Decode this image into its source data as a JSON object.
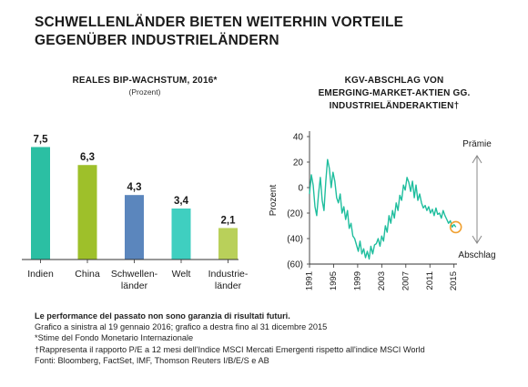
{
  "title_line1": "SCHWELLENLÄNDER BIETEN WEITERHIN VORTEILE",
  "title_line2": "GEGENÜBER INDUSTRIELÄNDERN",
  "chart_data": [
    {
      "type": "bar",
      "title": "REALES BIP-WACHSTUM, 2016*",
      "subtitle": "(Prozent)",
      "categories": [
        "Indien",
        "China",
        "Schwellenländer",
        "Welt",
        "Industrieländer"
      ],
      "category_labels": [
        [
          "Indien"
        ],
        [
          "China"
        ],
        [
          "Schwellen-",
          "länder"
        ],
        [
          "Welt"
        ],
        [
          "Industrie-",
          "länder"
        ]
      ],
      "values": [
        7.5,
        6.3,
        4.3,
        3.4,
        2.1
      ],
      "data_labels": [
        "7,5",
        "6,3",
        "4,3",
        "3,4",
        "2,1"
      ],
      "colors": [
        "#2bbfa3",
        "#9ec02a",
        "#5b86bd",
        "#3fcfc0",
        "#b9d05a"
      ],
      "ylim": [
        0,
        8.5
      ],
      "grid": false
    },
    {
      "type": "line",
      "title": [
        "KGV-ABSCHLAG VON",
        "EMERGING-MARKET-AKTIEN GG.",
        "INDUSTRIELÄNDERAKTIEN†"
      ],
      "ylabel": "Prozent",
      "xlim": [
        1991,
        2015.5
      ],
      "ylim": [
        -60,
        40
      ],
      "yticks": [
        40,
        20,
        0,
        -20,
        -40,
        -60
      ],
      "ytick_labels": [
        "40",
        "20",
        "0",
        "(20)",
        "(40)",
        "(60)"
      ],
      "xticks": [
        1991,
        1995,
        1999,
        2003,
        2007,
        2011,
        2015
      ],
      "line_color": "#1fbe9e",
      "series": [
        {
          "x": [
            1991.0,
            1991.3,
            1991.6,
            1991.9,
            1992.2,
            1992.5,
            1992.8,
            1993.1,
            1993.4,
            1993.7,
            1994.0,
            1994.3,
            1994.6,
            1994.9,
            1995.2,
            1995.5,
            1995.8,
            1996.1,
            1996.4,
            1996.7,
            1997.0,
            1997.3,
            1997.6,
            1997.9,
            1998.2,
            1998.5,
            1998.8,
            1999.1,
            1999.4,
            1999.7,
            2000.0,
            2000.3,
            2000.6,
            2000.9,
            2001.2,
            2001.5,
            2001.8,
            2002.1,
            2002.4,
            2002.7,
            2003.0,
            2003.3,
            2003.6,
            2003.9,
            2004.2,
            2004.5,
            2004.8,
            2005.1,
            2005.4,
            2005.7,
            2006.0,
            2006.3,
            2006.6,
            2006.9,
            2007.2,
            2007.5,
            2007.8,
            2008.1,
            2008.4,
            2008.7,
            2009.0,
            2009.3,
            2009.6,
            2009.9,
            2010.2,
            2010.5,
            2010.8,
            2011.1,
            2011.4,
            2011.7,
            2012.0,
            2012.3,
            2012.6,
            2012.9,
            2013.2,
            2013.5,
            2013.8,
            2014.1,
            2014.4,
            2014.7,
            2015.0,
            2015.3
          ],
          "y": [
            -5,
            10,
            2,
            -15,
            -22,
            -5,
            8,
            -10,
            -18,
            5,
            22,
            15,
            0,
            12,
            5,
            -8,
            -12,
            -5,
            -20,
            -15,
            -25,
            -18,
            -32,
            -28,
            -38,
            -40,
            -45,
            -50,
            -42,
            -52,
            -48,
            -55,
            -50,
            -56,
            -46,
            -52,
            -45,
            -44,
            -40,
            -46,
            -38,
            -42,
            -30,
            -35,
            -22,
            -28,
            -18,
            -24,
            -12,
            -18,
            -6,
            -10,
            2,
            -2,
            8,
            4,
            -3,
            5,
            -8,
            2,
            -10,
            -5,
            -12,
            -16,
            -14,
            -18,
            -15,
            -20,
            -17,
            -22,
            -16,
            -21,
            -20,
            -24,
            -18,
            -22,
            -25,
            -28,
            -26,
            -31,
            -29,
            -31
          ]
        }
      ],
      "annotations": [
        "Prämie",
        "Abschlag"
      ],
      "highlight_point": {
        "x": 2015.3,
        "y": -31
      }
    }
  ],
  "footer": {
    "disclaimer": "Le performance del passato non sono garanzia di risultati futuri.",
    "lines": [
      "Grafico a sinistra al 19 gennaio 2016; grafico a destra fino al 31 dicembre 2015",
      "*Stime del Fondo Monetario Internazionale",
      "†Rappresenta il rapporto P/E a 12 mesi  dell'Indice MSCI Mercati Emergenti rispetto all'indice MSCI World",
      "Fonti: Bloomberg, FactSet, IMF, Thomson Reuters I/B/E/S e AB"
    ]
  }
}
